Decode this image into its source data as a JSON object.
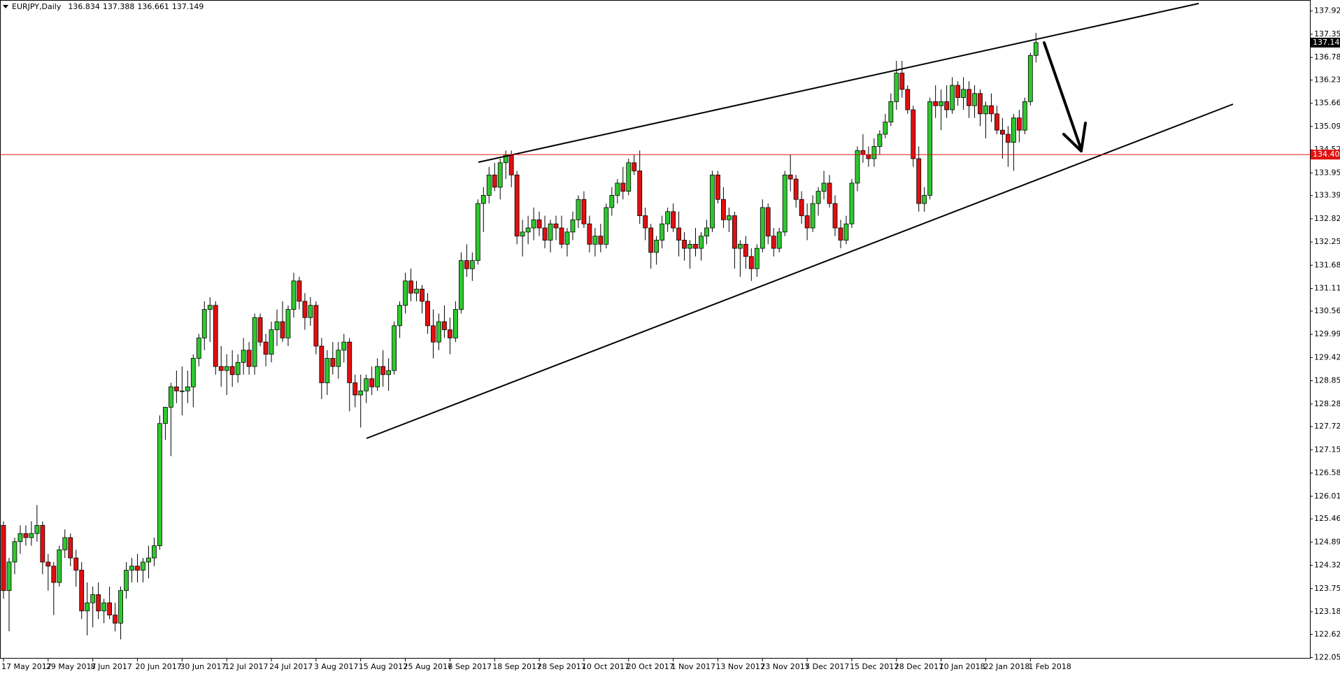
{
  "chart_data": {
    "type": "candlestick",
    "title": "EURJPY,Daily",
    "bull_color": "#2ec82e",
    "bear_color": "#e01010",
    "ylim": [
      122.03,
      138.16
    ],
    "yticks": [
      137.925,
      137.355,
      136.785,
      {
        "value": 136.23,
        "label": "136.230"
      },
      {
        "value": 135.66,
        "label": "135.660"
      },
      {
        "value": 135.09,
        "label": "135.090"
      },
      {
        "value": 134.52,
        "label": "134.520"
      },
      {
        "value": 133.95,
        "label": "133.950"
      },
      133.395,
      132.825,
      132.255,
      131.685,
      131.115,
      {
        "value": 130.56,
        "label": "130.560"
      },
      {
        "value": 129.99,
        "label": "129.990"
      },
      {
        "value": 129.42,
        "label": "129.420"
      },
      {
        "value": 128.85,
        "label": "128.850"
      },
      {
        "value": 128.28,
        "label": "128.280"
      },
      127.725,
      127.155,
      126.585,
      126.015,
      {
        "value": 125.46,
        "label": "125.460"
      },
      {
        "value": 124.89,
        "label": "124.890"
      },
      {
        "value": 124.32,
        "label": "124.320"
      },
      {
        "value": 123.75,
        "label": "123.750"
      },
      {
        "value": 123.18,
        "label": "123.180"
      },
      122.625,
      122.055
    ],
    "hline": {
      "value": 134.4,
      "label": "134.400",
      "color": "#e01010"
    },
    "categories": [
      "17 May 2017",
      null,
      null,
      null,
      null,
      null,
      null,
      null,
      "29 May 2017",
      null,
      null,
      null,
      null,
      null,
      null,
      null,
      "8 Jun 2017",
      null,
      null,
      null,
      null,
      null,
      null,
      null,
      "20 Jun 2017",
      null,
      null,
      null,
      null,
      null,
      null,
      null,
      "30 Jun 2017",
      null,
      null,
      null,
      null,
      null,
      null,
      null,
      "12 Jul 2017",
      null,
      null,
      null,
      null,
      null,
      null,
      null,
      "24 Jul 2017",
      null,
      null,
      null,
      null,
      null,
      null,
      null,
      "3 Aug 2017",
      null,
      null,
      null,
      null,
      null,
      null,
      null,
      "15 Aug 2017",
      null,
      null,
      null,
      null,
      null,
      null,
      null,
      "25 Aug 2017",
      null,
      null,
      null,
      null,
      null,
      null,
      null,
      "6 Sep 2017",
      null,
      null,
      null,
      null,
      null,
      null,
      null,
      "18 Sep 2017",
      null,
      null,
      null,
      null,
      null,
      null,
      null,
      "28 Sep 2017",
      null,
      null,
      null,
      null,
      null,
      null,
      null,
      "10 Oct 2017",
      null,
      null,
      null,
      null,
      null,
      null,
      null,
      "20 Oct 2017",
      null,
      null,
      null,
      null,
      null,
      null,
      null,
      "1 Nov 2017",
      null,
      null,
      null,
      null,
      null,
      null,
      null,
      "13 Nov 2017",
      null,
      null,
      null,
      null,
      null,
      null,
      null,
      "23 Nov 2017",
      null,
      null,
      null,
      null,
      null,
      null,
      null,
      "5 Dec 2017",
      null,
      null,
      null,
      null,
      null,
      null,
      null,
      "15 Dec 2017",
      null,
      null,
      null,
      null,
      null,
      null,
      null,
      "28 Dec 2017",
      null,
      null,
      null,
      null,
      null,
      null,
      null,
      "10 Jan 2018",
      null,
      null,
      null,
      null,
      null,
      null,
      null,
      "22 Jan 2018",
      null,
      null,
      null,
      null,
      null,
      null,
      null,
      "1 Feb 2018",
      null
    ],
    "ohlc": [
      [
        125.3,
        125.4,
        123.5,
        123.7
      ],
      [
        123.7,
        124.5,
        122.7,
        124.4
      ],
      [
        124.4,
        125.0,
        124.1,
        124.9
      ],
      [
        124.9,
        125.3,
        124.6,
        125.1
      ],
      [
        125.1,
        125.3,
        124.8,
        125.0
      ],
      [
        125.0,
        125.4,
        124.8,
        125.1
      ],
      [
        125.1,
        125.8,
        124.9,
        125.3
      ],
      [
        125.3,
        125.4,
        124.1,
        124.4
      ],
      [
        124.4,
        124.6,
        123.7,
        124.3
      ],
      [
        124.3,
        124.4,
        123.1,
        123.9
      ],
      [
        123.9,
        124.8,
        123.8,
        124.7
      ],
      [
        124.7,
        125.2,
        124.5,
        125.0
      ],
      [
        125.0,
        125.1,
        124.3,
        124.5
      ],
      [
        124.5,
        124.7,
        123.8,
        124.2
      ],
      [
        124.2,
        124.4,
        123.0,
        123.2
      ],
      [
        123.2,
        123.9,
        122.6,
        123.4
      ],
      [
        123.4,
        123.8,
        122.8,
        123.6
      ],
      [
        123.6,
        123.9,
        123.0,
        123.2
      ],
      [
        123.2,
        123.5,
        122.9,
        123.4
      ],
      [
        123.4,
        123.8,
        123.0,
        123.1
      ],
      [
        123.1,
        123.4,
        122.7,
        122.9
      ],
      [
        122.9,
        123.8,
        122.5,
        123.7
      ],
      [
        123.7,
        124.4,
        123.5,
        124.2
      ],
      [
        124.2,
        124.5,
        123.9,
        124.3
      ],
      [
        124.3,
        124.6,
        123.9,
        124.2
      ],
      [
        124.2,
        124.5,
        123.9,
        124.4
      ],
      [
        124.4,
        124.8,
        124.0,
        124.5
      ],
      [
        124.5,
        125.0,
        124.3,
        124.8
      ],
      [
        124.8,
        128.0,
        124.7,
        127.8
      ],
      [
        127.8,
        128.2,
        127.4,
        128.2
      ],
      [
        128.2,
        128.8,
        127.0,
        128.7
      ],
      [
        128.7,
        129.1,
        128.3,
        128.6
      ],
      [
        128.6,
        129.2,
        128.0,
        128.6
      ],
      [
        128.6,
        129.1,
        128.3,
        128.7
      ],
      [
        128.7,
        129.5,
        128.2,
        129.4
      ],
      [
        129.4,
        130.0,
        129.2,
        129.9
      ],
      [
        129.9,
        130.8,
        129.6,
        130.6
      ],
      [
        130.6,
        130.9,
        129.8,
        130.7
      ],
      [
        130.7,
        130.8,
        129.0,
        129.2
      ],
      [
        129.2,
        129.7,
        128.7,
        129.1
      ],
      [
        129.1,
        129.5,
        128.5,
        129.2
      ],
      [
        129.2,
        129.6,
        128.7,
        129.0
      ],
      [
        129.0,
        129.5,
        128.8,
        129.3
      ],
      [
        129.3,
        129.9,
        129.0,
        129.6
      ],
      [
        129.6,
        129.8,
        129.0,
        129.2
      ],
      [
        129.2,
        130.5,
        129.0,
        130.4
      ],
      [
        130.4,
        130.5,
        129.7,
        129.8
      ],
      [
        129.8,
        130.0,
        129.2,
        129.5
      ],
      [
        129.5,
        130.3,
        129.3,
        130.1
      ],
      [
        130.1,
        130.6,
        129.7,
        130.3
      ],
      [
        130.3,
        130.8,
        129.8,
        129.9
      ],
      [
        129.9,
        130.7,
        129.7,
        130.6
      ],
      [
        130.6,
        131.5,
        130.4,
        131.3
      ],
      [
        131.3,
        131.4,
        130.6,
        130.8
      ],
      [
        130.8,
        131.0,
        130.1,
        130.4
      ],
      [
        130.4,
        130.9,
        130.2,
        130.7
      ],
      [
        130.7,
        130.8,
        129.5,
        129.7
      ],
      [
        129.7,
        129.9,
        128.4,
        128.8
      ],
      [
        128.8,
        129.6,
        128.5,
        129.4
      ],
      [
        129.4,
        129.8,
        129.0,
        129.2
      ],
      [
        129.2,
        129.8,
        128.9,
        129.6
      ],
      [
        129.6,
        130.0,
        129.3,
        129.8
      ],
      [
        129.8,
        129.9,
        128.1,
        128.8
      ],
      [
        128.8,
        129.0,
        128.2,
        128.5
      ],
      [
        128.5,
        129.0,
        127.7,
        128.6
      ],
      [
        128.6,
        129.0,
        128.3,
        128.9
      ],
      [
        128.9,
        129.2,
        128.5,
        128.7
      ],
      [
        128.7,
        129.4,
        128.6,
        129.2
      ],
      [
        129.2,
        129.6,
        128.7,
        129.0
      ],
      [
        129.0,
        129.4,
        128.6,
        129.1
      ],
      [
        129.1,
        130.3,
        129.0,
        130.2
      ],
      [
        130.2,
        130.8,
        129.9,
        130.7
      ],
      [
        130.7,
        131.5,
        130.5,
        131.3
      ],
      [
        131.3,
        131.6,
        130.8,
        131.0
      ],
      [
        131.0,
        131.3,
        130.8,
        131.1
      ],
      [
        131.1,
        131.2,
        130.5,
        130.8
      ],
      [
        130.8,
        131.0,
        130.0,
        130.2
      ],
      [
        130.2,
        130.6,
        129.4,
        129.8
      ],
      [
        129.8,
        130.5,
        129.6,
        130.3
      ],
      [
        130.3,
        130.7,
        129.9,
        130.1
      ],
      [
        130.1,
        130.4,
        129.5,
        129.9
      ],
      [
        129.9,
        130.8,
        129.8,
        130.6
      ],
      [
        130.6,
        132.0,
        130.5,
        131.8
      ],
      [
        131.8,
        132.2,
        131.4,
        131.6
      ],
      [
        131.6,
        132.0,
        131.3,
        131.8
      ],
      [
        131.8,
        133.3,
        131.7,
        133.2
      ],
      [
        133.2,
        133.6,
        132.5,
        133.4
      ],
      [
        133.4,
        134.1,
        133.2,
        133.9
      ],
      [
        133.9,
        134.2,
        133.5,
        133.6
      ],
      [
        133.6,
        134.3,
        133.3,
        134.2
      ],
      [
        134.2,
        134.5,
        133.8,
        134.4
      ],
      [
        134.4,
        134.5,
        133.6,
        133.9
      ],
      [
        133.9,
        134.0,
        132.2,
        132.4
      ],
      [
        132.4,
        132.8,
        131.9,
        132.5
      ],
      [
        132.5,
        132.9,
        132.2,
        132.6
      ],
      [
        132.6,
        133.1,
        132.3,
        132.8
      ],
      [
        132.8,
        133.0,
        132.4,
        132.6
      ],
      [
        132.6,
        132.9,
        132.1,
        132.3
      ],
      [
        132.3,
        132.8,
        132.0,
        132.7
      ],
      [
        132.7,
        132.9,
        132.3,
        132.6
      ],
      [
        132.6,
        132.9,
        132.1,
        132.2
      ],
      [
        132.2,
        132.6,
        131.9,
        132.5
      ],
      [
        132.5,
        133.0,
        132.3,
        132.8
      ],
      [
        132.8,
        133.4,
        132.6,
        133.3
      ],
      [
        133.3,
        133.5,
        132.6,
        132.7
      ],
      [
        132.7,
        132.9,
        132.0,
        132.2
      ],
      [
        132.2,
        132.6,
        131.9,
        132.4
      ],
      [
        132.4,
        132.7,
        132.0,
        132.2
      ],
      [
        132.2,
        133.2,
        132.1,
        133.1
      ],
      [
        133.1,
        133.6,
        132.9,
        133.4
      ],
      [
        133.4,
        133.8,
        133.2,
        133.7
      ],
      [
        133.7,
        134.1,
        133.3,
        133.5
      ],
      [
        133.5,
        134.3,
        133.4,
        134.2
      ],
      [
        134.2,
        134.4,
        133.9,
        134.0
      ],
      [
        134.0,
        134.5,
        132.7,
        132.9
      ],
      [
        132.9,
        133.1,
        132.3,
        132.6
      ],
      [
        132.6,
        132.7,
        131.6,
        132.0
      ],
      [
        132.0,
        132.4,
        131.7,
        132.3
      ],
      [
        132.3,
        132.9,
        132.1,
        132.7
      ],
      [
        132.7,
        133.1,
        132.5,
        133.0
      ],
      [
        133.0,
        133.2,
        132.5,
        132.6
      ],
      [
        132.6,
        133.0,
        131.9,
        132.3
      ],
      [
        132.3,
        132.5,
        131.8,
        132.1
      ],
      [
        132.1,
        132.3,
        131.6,
        132.2
      ],
      [
        132.2,
        132.6,
        131.9,
        132.1
      ],
      [
        132.1,
        132.5,
        131.8,
        132.4
      ],
      [
        132.4,
        132.8,
        132.2,
        132.6
      ],
      [
        132.6,
        134.0,
        132.5,
        133.9
      ],
      [
        133.9,
        134.0,
        133.2,
        133.3
      ],
      [
        133.3,
        133.6,
        132.6,
        132.8
      ],
      [
        132.8,
        133.1,
        132.5,
        132.9
      ],
      [
        132.9,
        133.0,
        131.6,
        132.1
      ],
      [
        132.1,
        132.3,
        131.4,
        132.2
      ],
      [
        132.2,
        132.4,
        131.6,
        131.9
      ],
      [
        131.9,
        132.1,
        131.3,
        131.6
      ],
      [
        131.6,
        132.2,
        131.4,
        132.1
      ],
      [
        132.1,
        133.3,
        132.0,
        133.1
      ],
      [
        133.1,
        133.2,
        132.2,
        132.4
      ],
      [
        132.4,
        132.6,
        131.9,
        132.1
      ],
      [
        132.1,
        132.6,
        132.0,
        132.5
      ],
      [
        132.5,
        134.0,
        132.4,
        133.9
      ],
      [
        133.9,
        134.4,
        133.5,
        133.8
      ],
      [
        133.8,
        133.9,
        133.1,
        133.3
      ],
      [
        133.3,
        133.5,
        132.7,
        132.9
      ],
      [
        132.9,
        133.2,
        132.3,
        132.6
      ],
      [
        132.6,
        133.4,
        132.5,
        133.2
      ],
      [
        133.2,
        133.6,
        132.9,
        133.5
      ],
      [
        133.5,
        134.0,
        133.3,
        133.7
      ],
      [
        133.7,
        133.9,
        133.1,
        133.2
      ],
      [
        133.2,
        133.4,
        132.4,
        132.6
      ],
      [
        132.6,
        132.8,
        132.1,
        132.3
      ],
      [
        132.3,
        132.9,
        132.2,
        132.7
      ],
      [
        132.7,
        133.8,
        132.6,
        133.7
      ],
      [
        133.7,
        134.6,
        133.5,
        134.5
      ],
      [
        134.5,
        134.9,
        134.2,
        134.4
      ],
      [
        134.4,
        134.6,
        134.1,
        134.3
      ],
      [
        134.3,
        134.8,
        134.1,
        134.6
      ],
      [
        134.6,
        135.0,
        134.4,
        134.9
      ],
      [
        134.9,
        135.4,
        134.8,
        135.2
      ],
      [
        135.2,
        135.9,
        135.1,
        135.7
      ],
      [
        135.7,
        136.7,
        135.5,
        136.4
      ],
      [
        136.4,
        136.7,
        135.8,
        136.0
      ],
      [
        136.0,
        136.1,
        135.4,
        135.5
      ],
      [
        135.5,
        135.6,
        134.1,
        134.3
      ],
      [
        134.3,
        134.6,
        133.0,
        133.2
      ],
      [
        133.2,
        133.6,
        133.0,
        133.4
      ],
      [
        133.4,
        135.8,
        133.3,
        135.7
      ],
      [
        135.7,
        136.1,
        135.3,
        135.6
      ],
      [
        135.6,
        136.0,
        135.0,
        135.7
      ],
      [
        135.7,
        136.1,
        135.3,
        135.5
      ],
      [
        135.5,
        136.3,
        135.4,
        136.1
      ],
      [
        136.1,
        136.2,
        135.6,
        135.8
      ],
      [
        135.8,
        136.3,
        135.5,
        136.0
      ],
      [
        136.0,
        136.2,
        135.3,
        135.6
      ],
      [
        135.6,
        136.1,
        135.3,
        135.9
      ],
      [
        135.9,
        136.0,
        135.1,
        135.4
      ],
      [
        135.4,
        135.7,
        134.8,
        135.6
      ],
      [
        135.6,
        135.9,
        135.2,
        135.4
      ],
      [
        135.4,
        135.6,
        134.9,
        135.0
      ],
      [
        135.0,
        135.3,
        134.3,
        134.9
      ],
      [
        134.9,
        135.1,
        134.1,
        134.7
      ],
      [
        134.7,
        135.4,
        134.0,
        135.3
      ],
      [
        135.3,
        135.5,
        134.7,
        135.0
      ],
      [
        135.0,
        135.8,
        134.9,
        135.7
      ],
      [
        135.7,
        136.9,
        135.6,
        136.834
      ],
      [
        136.834,
        137.388,
        136.661,
        137.149
      ]
    ]
  }
}
